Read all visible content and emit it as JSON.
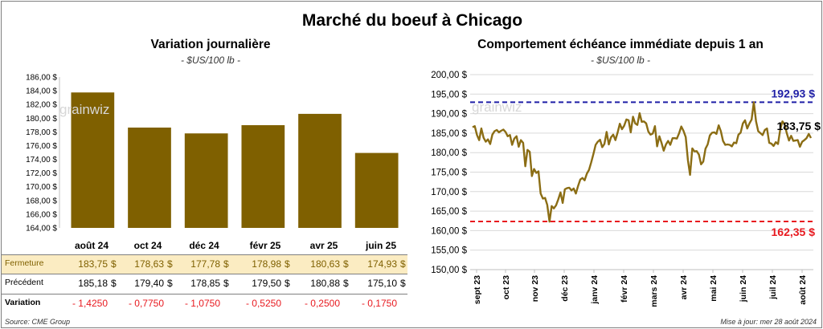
{
  "title": "Marché du boeuf à Chicago",
  "colors": {
    "bar": "#7f6000",
    "line": "#8b6d14",
    "high": "#1f1fa6",
    "low": "#e8191f",
    "table_row_bg": "#fbecc2"
  },
  "watermark": "grainwiz",
  "chart_data": [
    {
      "type": "bar",
      "title": "Variation  journalière",
      "subtitle": "- $US/100 lb -",
      "categories": [
        "août 24",
        "oct 24",
        "déc 24",
        "févr 25",
        "avr 25",
        "juin 25"
      ],
      "values": [
        183.75,
        178.63,
        177.78,
        178.98,
        180.63,
        174.93
      ],
      "ylim": [
        164,
        186
      ],
      "yticks": [
        "164,00 $",
        "166,00 $",
        "168,00 $",
        "170,00 $",
        "172,00 $",
        "174,00 $",
        "176,00 $",
        "178,00 $",
        "180,00 $",
        "182,00 $",
        "184,00 $",
        "186,00 $"
      ],
      "grid": false
    },
    {
      "type": "line",
      "title": "Comportement  échéance immédiate depuis 1 an",
      "subtitle": "- $US/100 lb -",
      "x_labels": [
        "sept 23",
        "oct 23",
        "nov 23",
        "déc 23",
        "janv 24",
        "févr 24",
        "mars 24",
        "avr 24",
        "mai 24",
        "juin 24",
        "juil 24",
        "août 24"
      ],
      "ylim": [
        150,
        200
      ],
      "yticks": [
        "150,00 $",
        "155,00 $",
        "160,00 $",
        "165,00 $",
        "170,00 $",
        "175,00 $",
        "180,00 $",
        "185,00 $",
        "190,00 $",
        "195,00 $",
        "200,00 $"
      ],
      "grid": true,
      "values": [
        186.5,
        186.8,
        184.5,
        183.2,
        186.2,
        183.8,
        182.8,
        183.4,
        182.2,
        184.6,
        185.5,
        185.8,
        185.2,
        185.6,
        185.9,
        185.3,
        184.2,
        184.5,
        182.0,
        183.6,
        184.2,
        181.5,
        183.2,
        182.5,
        176.5,
        180.7,
        180.2,
        174.0,
        175.8,
        174.8,
        175.2,
        169.5,
        168.2,
        168.4,
        166.6,
        162.3,
        166.3,
        165.7,
        166.5,
        168.0,
        169.8,
        167.1,
        170.6,
        170.9,
        171.0,
        170.3,
        170.8,
        169.5,
        171.4,
        173.1,
        173.5,
        172.9,
        174.6,
        175.6,
        177.5,
        179.7,
        182.0,
        182.8,
        183.3,
        181.4,
        182.2,
        185.3,
        182.1,
        183.9,
        184.6,
        183.2,
        185.1,
        187.4,
        186.0,
        186.9,
        188.5,
        188.3,
        185.2,
        189.2,
        187.5,
        187.1,
        190.1,
        187.9,
        188.0,
        187.5,
        185.4,
        184.6,
        184.9,
        186.8,
        181.6,
        184.2,
        182.5,
        180.5,
        182.1,
        183.0,
        182.0,
        183.7,
        183.7,
        183.6,
        185.0,
        186.7,
        185.6,
        184.0,
        178.1,
        174.3,
        181.1,
        180.3,
        180.4,
        179.5,
        177.0,
        177.7,
        181.0,
        182.1,
        184.4,
        185.1,
        185.2,
        184.8,
        187.0,
        185.5,
        183.0,
        182.0,
        182.1,
        182.0,
        181.6,
        182.6,
        182.4,
        184.6,
        185.1,
        187.5,
        188.3,
        186.2,
        187.5,
        188.5,
        192.93,
        188.0,
        185.5,
        185.0,
        184.5,
        185.8,
        186.2,
        182.5,
        182.3,
        181.7,
        182.7,
        182.2,
        185.8,
        188.0,
        187.3,
        185.0,
        183.1,
        184.3,
        183.0,
        183.1,
        183.2,
        181.5,
        182.8,
        183.2,
        183.7,
        184.8,
        183.75
      ],
      "annotations": [
        {
          "label": "192,93 $",
          "value": 192.93,
          "kind": "max"
        },
        {
          "label": "183,75 $",
          "value": 183.75,
          "kind": "last"
        },
        {
          "label": "162,35 $",
          "value": 162.35,
          "kind": "min"
        }
      ]
    }
  ],
  "table": {
    "months": [
      "août 24",
      "oct 24",
      "déc 24",
      "févr 25",
      "avr 25",
      "juin 25"
    ],
    "rows": [
      {
        "label": "Fermeture",
        "values": [
          "183,75",
          "178,63",
          "177,78",
          "178,98",
          "180,63",
          "174,93"
        ],
        "unit": "$"
      },
      {
        "label": "Précédent",
        "values": [
          "185,18",
          "179,40",
          "178,85",
          "179,50",
          "180,88",
          "175,10"
        ],
        "unit": "$"
      },
      {
        "label": "Variation",
        "values": [
          "- 1,4250",
          "- 0,7750",
          "- 1,0750",
          "- 0,5250",
          "- 0,2500",
          "- 0,1750"
        ],
        "unit": ""
      }
    ]
  },
  "source": "Source: CME Group",
  "update": "Mise à jour: mer 28 août 2024"
}
